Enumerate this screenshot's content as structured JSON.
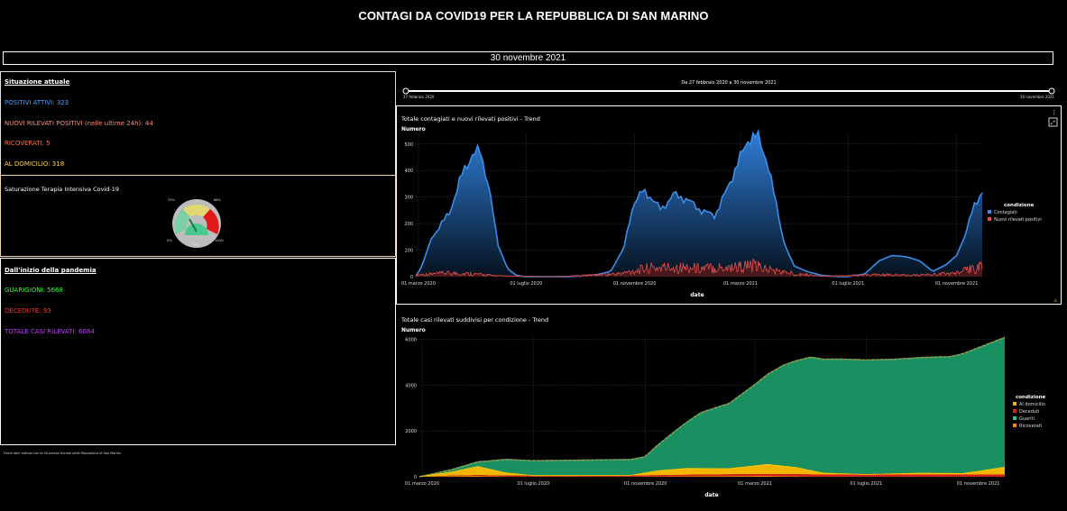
{
  "page": {
    "title": "CONTAGI DA COVID19 PER LA REPUBBLICA DI SAN MARINO",
    "date": "30 novembre 2021",
    "source_note": "Fonte dati: Istituto per la Sicurezza Sociale della Repubblica di San Marino"
  },
  "current": {
    "heading": "Situazione attuale",
    "positivi": "POSITIVI ATTIVI: 323",
    "nuovi": "NUOVI RILEVATI POSITIVI (nelle ultime 24h): 44",
    "ricoverati": "RICOVERATI: 5",
    "domicilio": "AL DOMICILIO: 318"
  },
  "gauge": {
    "title": "Saturazione Terapia Intensiva Covid-19",
    "label_0": "0%",
    "label_33": "33%",
    "label_66": "66%",
    "label_100": "100%",
    "value_text": "0%",
    "value": 0
  },
  "since_start": {
    "heading": "Dall'inizio della pandemia",
    "guariti": "GUARIGIONI: 5668",
    "decedute": "DECEDUTE: 93",
    "totale": "TOTALE CASI RILEVATI: 6084"
  },
  "slider": {
    "caption": "Da 27 febbraio 2020 a 30 novembre 2021",
    "start_label": "27 febbraio 2020",
    "end_label": "30 novembre 2021"
  },
  "colors": {
    "positivi": "#4aa3ff",
    "nuovi": "#ff8c7a",
    "ricoverati": "#ff7043",
    "domicilio": "#ffd54f",
    "guariti": "#34ff3b",
    "decedute": "#ff2d2d",
    "totale": "#c040ff",
    "contagiati": "#3a8eea",
    "nuovi_rilevati": "#e05050",
    "area_guariti": "#2fc496",
    "area_domicilio": "#f2b600",
    "area_ricoverati": "#ff8800",
    "line_totale": "#d35400"
  },
  "chart_data": [
    {
      "type": "area",
      "title": "Totale contagiati e nuovi rilevati positivi - Trend",
      "ylabel": "Numero",
      "xlabel": "date",
      "x_ticks": [
        "01 marzo 2020",
        "01 luglio 2020",
        "01 novembre 2020",
        "01 marzo 2021",
        "01 luglio 2021",
        "01 novembre 2021"
      ],
      "y_ticks": [
        0,
        100,
        200,
        300,
        400,
        500
      ],
      "ylim": [
        0,
        540
      ],
      "legend_title": "condizione",
      "series": [
        {
          "name": "Contagiati",
          "x": [
            "2020-02-27",
            "2020-03-05",
            "2020-03-15",
            "2020-03-25",
            "2020-04-05",
            "2020-04-20",
            "2020-05-01",
            "2020-05-10",
            "2020-05-20",
            "2020-05-30",
            "2020-06-10",
            "2020-06-20",
            "2020-06-30",
            "2020-07-15",
            "2020-08-01",
            "2020-08-15",
            "2020-09-01",
            "2020-09-20",
            "2020-10-05",
            "2020-10-20",
            "2020-10-31",
            "2020-11-10",
            "2020-11-20",
            "2020-12-01",
            "2020-12-15",
            "2020-12-31",
            "2021-01-15",
            "2021-01-31",
            "2021-02-10",
            "2021-02-20",
            "2021-03-01",
            "2021-03-10",
            "2021-03-20",
            "2021-03-31",
            "2021-04-10",
            "2021-04-20",
            "2021-05-01",
            "2021-05-15",
            "2021-06-01",
            "2021-06-20",
            "2021-07-01",
            "2021-07-20",
            "2021-08-05",
            "2021-08-20",
            "2021-09-05",
            "2021-09-20",
            "2021-10-05",
            "2021-10-20",
            "2021-11-01",
            "2021-11-10",
            "2021-11-20",
            "2021-11-30"
          ],
          "y": [
            1,
            40,
            140,
            190,
            240,
            390,
            460,
            470,
            340,
            120,
            30,
            5,
            0,
            0,
            0,
            0,
            2,
            8,
            20,
            110,
            280,
            320,
            300,
            250,
            310,
            290,
            250,
            230,
            300,
            380,
            450,
            520,
            530,
            440,
            280,
            120,
            40,
            20,
            5,
            0,
            0,
            10,
            60,
            80,
            75,
            60,
            20,
            45,
            80,
            150,
            260,
            323
          ]
        },
        {
          "name": "Nuovi rilevati positivi",
          "x": [
            "2020-03-01",
            "2020-04-01",
            "2020-05-01",
            "2020-06-01",
            "2020-08-01",
            "2020-10-15",
            "2020-11-15",
            "2020-12-15",
            "2021-01-15",
            "2021-02-15",
            "2021-03-15",
            "2021-04-15",
            "2021-06-01",
            "2021-08-01",
            "2021-09-15",
            "2021-11-01",
            "2021-11-30"
          ],
          "y": [
            8,
            15,
            12,
            3,
            0,
            12,
            35,
            40,
            35,
            40,
            45,
            20,
            2,
            8,
            6,
            15,
            44
          ]
        }
      ]
    },
    {
      "type": "area",
      "title": "Totale casi rilevati suddivisi per condizione - Trend",
      "ylabel": "Numero",
      "xlabel": "date",
      "x_ticks": [
        "01 marzo 2020",
        "01 luglio 2020",
        "01 novembre 2020",
        "01 marzo 2021",
        "01 luglio 2021",
        "01 novembre 2021"
      ],
      "y_ticks": [
        0,
        2000,
        4000,
        6000
      ],
      "ylim": [
        0,
        6100
      ],
      "legend_title": "condizione",
      "series": [
        {
          "name": "Al domicilio",
          "x": [
            "2020-02-27",
            "2020-04-01",
            "2020-05-01",
            "2020-06-01",
            "2020-07-01",
            "2020-10-15",
            "2020-11-15",
            "2020-12-15",
            "2021-01-31",
            "2021-03-15",
            "2021-04-15",
            "2021-05-15",
            "2021-07-01",
            "2021-09-01",
            "2021-10-15",
            "2021-11-30"
          ],
          "y": [
            0,
            150,
            380,
            120,
            0,
            0,
            200,
            280,
            250,
            420,
            300,
            60,
            0,
            60,
            40,
            318
          ]
        },
        {
          "name": "Deceduti",
          "x": [
            "2020-02-27",
            "2020-06-01",
            "2020-10-31",
            "2021-01-31",
            "2021-04-30",
            "2021-11-30"
          ],
          "y": [
            0,
            42,
            45,
            70,
            90,
            93
          ]
        },
        {
          "name": "Guariti",
          "x": [
            "2020-02-27",
            "2020-04-01",
            "2020-05-01",
            "2020-06-01",
            "2020-07-01",
            "2020-10-31",
            "2020-12-01",
            "2021-01-01",
            "2021-02-01",
            "2021-03-01",
            "2021-04-01",
            "2021-05-01",
            "2021-06-01",
            "2021-08-01",
            "2021-10-01",
            "2021-11-30"
          ],
          "y": [
            0,
            100,
            200,
            590,
            650,
            700,
            1600,
            2450,
            2850,
            3550,
            4400,
            4950,
            5000,
            5000,
            5100,
            5668
          ]
        },
        {
          "name": "Ricoverati",
          "x": [
            "2020-02-27",
            "2020-04-01",
            "2020-05-01",
            "2020-06-01",
            "2020-11-15",
            "2020-12-15",
            "2021-03-15",
            "2021-04-30",
            "2021-11-30"
          ],
          "y": [
            0,
            30,
            40,
            5,
            15,
            25,
            40,
            10,
            5
          ]
        }
      ]
    }
  ]
}
